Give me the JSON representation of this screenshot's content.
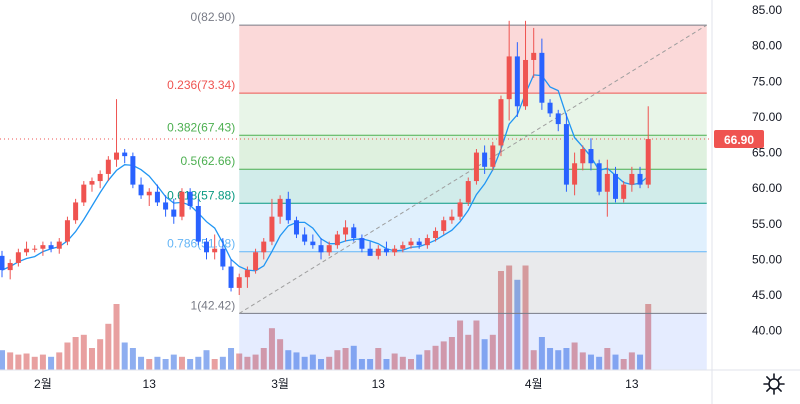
{
  "chart_data": {
    "type": "candlestick",
    "x_tick_labels": [
      "2월",
      "13",
      "3월",
      "13",
      "4월",
      "13"
    ],
    "y_tick_labels": [
      "40.00",
      "45.00",
      "50.00",
      "55.00",
      "60.00",
      "65.00",
      "70.00",
      "75.00",
      "80.00",
      "85.00"
    ],
    "ylim": [
      37,
      86
    ],
    "last_price_label": "66.90",
    "last_price": 66.9,
    "colors": {
      "up": "#ef5350",
      "down": "#2962ff",
      "vol_up": "#e8a0a0",
      "vol_down": "#8eaef0",
      "ma": "#2196f3",
      "last_price": "#ef5350"
    },
    "fibonacci": {
      "start_bar": 29,
      "end_bar": 82,
      "levels": [
        {
          "label": "0(82.90)",
          "value": 82.9,
          "color": "#787b86",
          "fill": "rgba(239,83,80,0.22)"
        },
        {
          "label": "0.236(73.34)",
          "value": 73.34,
          "color": "#ef5350",
          "fill": "rgba(76,175,80,0.13)"
        },
        {
          "label": "0.382(67.43)",
          "value": 67.43,
          "color": "#4caf50",
          "fill": "rgba(76,175,80,0.18)"
        },
        {
          "label": "0.5(62.66)",
          "value": 62.66,
          "color": "#4caf50",
          "fill": "rgba(0,150,136,0.18)"
        },
        {
          "label": "0.618(57.88)",
          "value": 57.88,
          "color": "#089981",
          "fill": "rgba(100,181,246,0.20)"
        },
        {
          "label": "0.786(51.08)",
          "value": 51.08,
          "color": "#64b5f6",
          "fill": "rgba(120,123,134,0.16)"
        },
        {
          "label": "1(42.42)",
          "value": 42.42,
          "color": "#787b86",
          "fill": "rgba(41,98,255,0.12)"
        }
      ]
    },
    "candles": [
      [
        50.5,
        51.2,
        47.5,
        48.5
      ],
      [
        48.5,
        50,
        47.2,
        49.5
      ],
      [
        49.5,
        51.5,
        49,
        51
      ],
      [
        51,
        52.5,
        50.5,
        51.5
      ],
      [
        51.5,
        52,
        51,
        51.5
      ],
      [
        51.5,
        52.5,
        50.5,
        52
      ],
      [
        52,
        52.5,
        51,
        51.5
      ],
      [
        51.5,
        53,
        50.8,
        52.5
      ],
      [
        52.5,
        56,
        52,
        55.5
      ],
      [
        55.5,
        58.5,
        55,
        58
      ],
      [
        58,
        61,
        57.5,
        60.5
      ],
      [
        60.5,
        61.5,
        59.5,
        61
      ],
      [
        61,
        62.5,
        60,
        62
      ],
      [
        62,
        64.5,
        61,
        64
      ],
      [
        64,
        72.5,
        63,
        65
      ],
      [
        65,
        65.5,
        63.5,
        64.5
      ],
      [
        64.5,
        65,
        60,
        60.5
      ],
      [
        60.5,
        61.5,
        58.5,
        59
      ],
      [
        59,
        60,
        57.5,
        59.5
      ],
      [
        59.5,
        60.5,
        57.5,
        58
      ],
      [
        58,
        59,
        56,
        57
      ],
      [
        57,
        58.5,
        55,
        56
      ],
      [
        56,
        60,
        55.5,
        59.5
      ],
      [
        59.5,
        60,
        57,
        57.5
      ],
      [
        57.5,
        58.5,
        52,
        52.5
      ],
      [
        52.5,
        53,
        50,
        51
      ],
      [
        51,
        53.5,
        50,
        51.5
      ],
      [
        51.5,
        53,
        48.5,
        49
      ],
      [
        49,
        50,
        45.5,
        46
      ],
      [
        46,
        48,
        45,
        47.5
      ],
      [
        47.5,
        49,
        46,
        48.5
      ],
      [
        48.5,
        51.5,
        48,
        51
      ],
      [
        51,
        53,
        50,
        52.5
      ],
      [
        52.5,
        58.5,
        52,
        56
      ],
      [
        56,
        59,
        55,
        58.5
      ],
      [
        58.5,
        59.5,
        55,
        55.5
      ],
      [
        55.5,
        56,
        53,
        53.5
      ],
      [
        53.5,
        54.5,
        52,
        52.5
      ],
      [
        52.5,
        53.5,
        51.5,
        52
      ],
      [
        52,
        53,
        50,
        51
      ],
      [
        51,
        52.5,
        50.5,
        52
      ],
      [
        52,
        54,
        51.5,
        53.5
      ],
      [
        53.5,
        55.5,
        52.5,
        54.5
      ],
      [
        54.5,
        55,
        52.5,
        53
      ],
      [
        53,
        53.5,
        51,
        51.5
      ],
      [
        51.5,
        52.5,
        50.5,
        50.5
      ],
      [
        50.5,
        52,
        50,
        51.5
      ],
      [
        51.5,
        52.5,
        50.5,
        51
      ],
      [
        51,
        52,
        50.5,
        51.5
      ],
      [
        51.5,
        52.5,
        51,
        52
      ],
      [
        52,
        53,
        51.5,
        52.5
      ],
      [
        52.5,
        53,
        51.5,
        52
      ],
      [
        52,
        53.5,
        51.5,
        53
      ],
      [
        53,
        54.5,
        52.5,
        54
      ],
      [
        54,
        56,
        53.5,
        55.5
      ],
      [
        55.5,
        57,
        55,
        56
      ],
      [
        56,
        58.5,
        55.5,
        58
      ],
      [
        58,
        61.5,
        57.5,
        61
      ],
      [
        61,
        65.5,
        60.5,
        65
      ],
      [
        65,
        66,
        62,
        63
      ],
      [
        63,
        66.5,
        62.5,
        66
      ],
      [
        66,
        73,
        64.5,
        72.5
      ],
      [
        72.5,
        83.5,
        69.5,
        78.5
      ],
      [
        78.5,
        80.5,
        70,
        71.5
      ],
      [
        71.5,
        83.5,
        71,
        78
      ],
      [
        78,
        82.5,
        75.5,
        79
      ],
      [
        79,
        81,
        71,
        72
      ],
      [
        72,
        72.5,
        70,
        70.5
      ],
      [
        70.5,
        71,
        68,
        69
      ],
      [
        69,
        70.5,
        59.5,
        60.5
      ],
      [
        60.5,
        65,
        59,
        63.5
      ],
      [
        63.5,
        66,
        62.5,
        65.5
      ],
      [
        65.5,
        67,
        62.5,
        63.5
      ],
      [
        63.5,
        64,
        59,
        59.5
      ],
      [
        59.5,
        64,
        56,
        62
      ],
      [
        62,
        63,
        58,
        58.5
      ],
      [
        58.5,
        61,
        58,
        60.5
      ],
      [
        60.5,
        63,
        59.5,
        62
      ],
      [
        62,
        63,
        60,
        60.5
      ],
      [
        60.5,
        71.5,
        60,
        66.9
      ]
    ],
    "volumes": [
      0.18,
      0.16,
      0.14,
      0.15,
      0.12,
      0.14,
      0.12,
      0.16,
      0.25,
      0.3,
      0.32,
      0.2,
      0.28,
      0.42,
      0.6,
      0.25,
      0.2,
      0.12,
      0.1,
      0.12,
      0.1,
      0.14,
      0.12,
      0.1,
      0.12,
      0.18,
      0.1,
      0.12,
      0.2,
      0.15,
      0.12,
      0.14,
      0.2,
      0.38,
      0.28,
      0.18,
      0.16,
      0.12,
      0.14,
      0.1,
      0.12,
      0.18,
      0.2,
      0.22,
      0.1,
      0.1,
      0.2,
      0.1,
      0.15,
      0.12,
      0.1,
      0.14,
      0.18,
      0.22,
      0.26,
      0.3,
      0.45,
      0.32,
      0.45,
      0.28,
      0.32,
      0.9,
      0.95,
      0.82,
      0.95,
      0.18,
      0.3,
      0.2,
      0.18,
      0.2,
      0.25,
      0.16,
      0.14,
      0.12,
      0.2,
      0.14,
      0.1,
      0.16,
      0.14,
      0.6
    ]
  },
  "icons": {
    "settings": "gear-icon"
  }
}
